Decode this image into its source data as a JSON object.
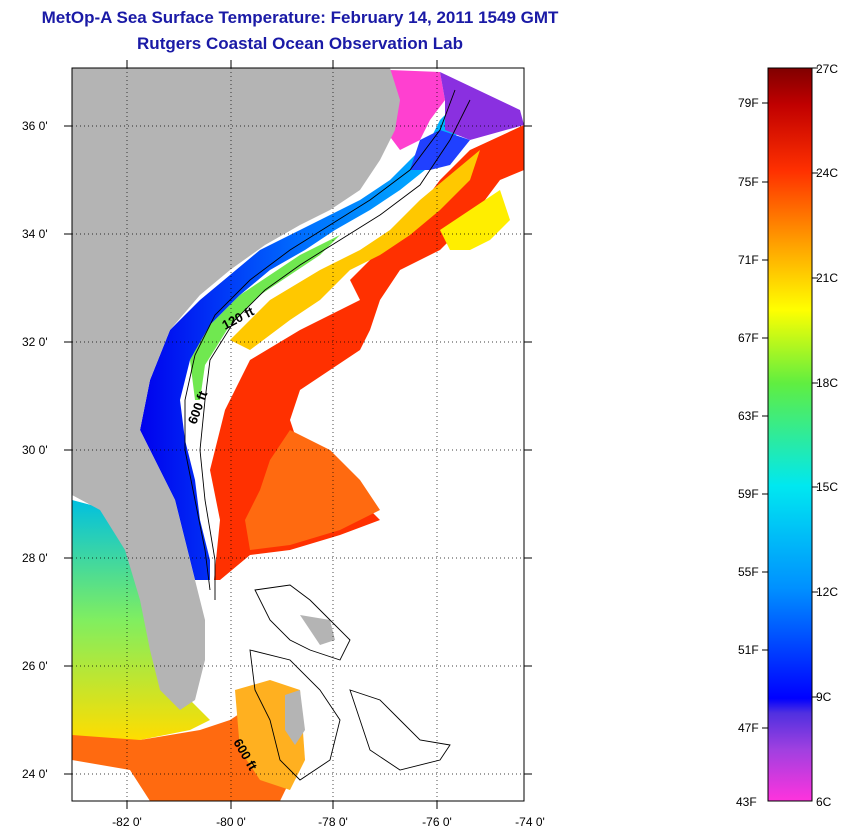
{
  "title": "MetOp-A Sea Surface Temperature:  February 14, 2011 1549 GMT",
  "subtitle": "Rutgers Coastal Ocean Observation Lab",
  "map": {
    "lat_ticks": [
      "36 0'",
      "34 0'",
      "32 0'",
      "30 0'",
      "28 0'",
      "26 0'",
      "24 0'"
    ],
    "lon_ticks": [
      "-82 0'",
      "-80 0'",
      "-78 0'",
      "-76 0'",
      "-74 0'"
    ],
    "contour_labels": [
      "120 ft",
      "600 ft",
      "600 ft"
    ],
    "colors": {
      "land": "#b4b4b4",
      "no_data": "#ffffff"
    }
  },
  "colorbar": {
    "fahrenheit_labels": [
      "79F",
      "75F",
      "71F",
      "67F",
      "63F",
      "59F",
      "55F",
      "51F",
      "47F",
      "43F"
    ],
    "celsius_labels": [
      "27C",
      "24C",
      "21C",
      "18C",
      "15C",
      "12C",
      "9C",
      "6C"
    ],
    "range_c": [
      6,
      27
    ]
  }
}
